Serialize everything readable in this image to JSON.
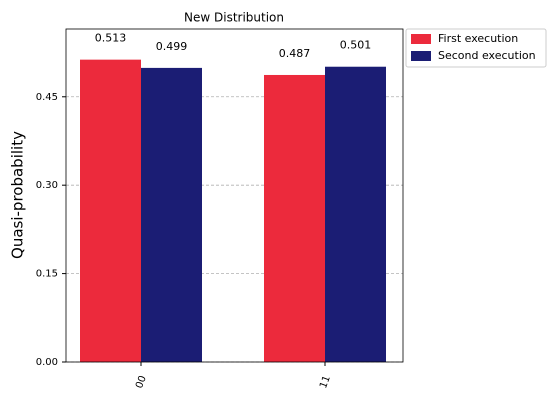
{
  "chart_data": {
    "type": "bar",
    "title": "New Distribution",
    "ylabel": "Quasi-probability",
    "categories": [
      "00",
      "11"
    ],
    "series": [
      {
        "name": "First execution",
        "color": "#ec2a3c",
        "values": [
          0.513,
          0.487
        ]
      },
      {
        "name": "Second execution",
        "color": "#1b1d74",
        "values": [
          0.499,
          0.501
        ]
      }
    ],
    "ylim": [
      0,
      0.565
    ],
    "yticks": [
      {
        "value": 0,
        "label": "0.00"
      },
      {
        "value": 0.15,
        "label": "0.15"
      },
      {
        "value": 0.3,
        "label": "0.30"
      },
      {
        "value": 0.45,
        "label": "0.45"
      }
    ],
    "grid": true,
    "legend": "outside-upper-right"
  }
}
